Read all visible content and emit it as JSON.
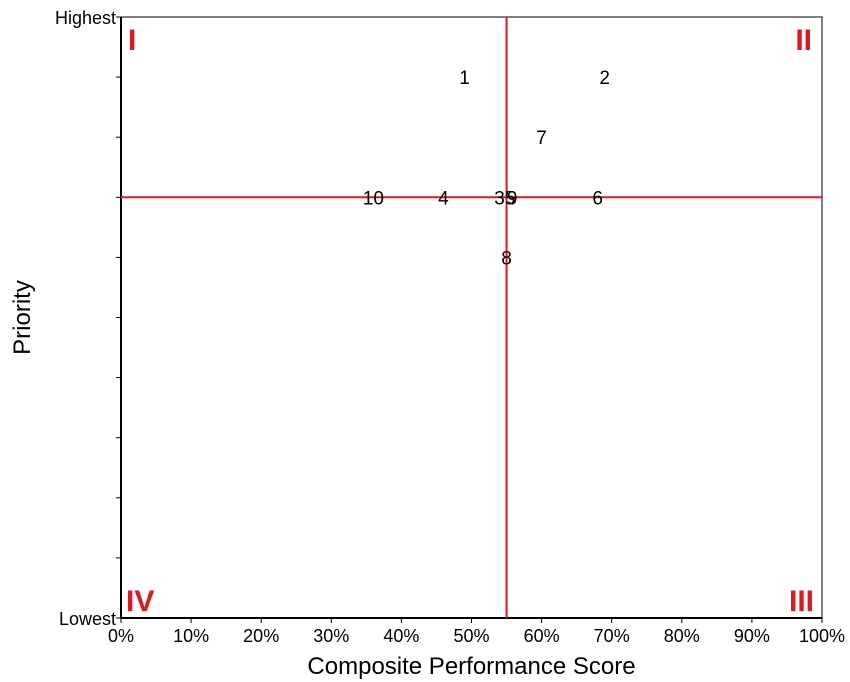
{
  "chart_data": {
    "type": "scatter",
    "xlabel": "Composite Performance Score",
    "ylabel": "Priority",
    "xlim": [
      0,
      100
    ],
    "ylim": [
      0,
      10
    ],
    "x_ticks": [
      "0%",
      "10%",
      "20%",
      "30%",
      "40%",
      "50%",
      "60%",
      "70%",
      "80%",
      "90%",
      "100%"
    ],
    "y_tick_labels": {
      "top": "Highest",
      "bottom": "Lowest"
    },
    "y_minor_ticks": 10,
    "quadrant_lines": {
      "x": 55,
      "y": 7
    },
    "quadrant_labels": {
      "top_left": "I",
      "top_right": "II",
      "bottom_right": "III",
      "bottom_left": "IV"
    },
    "colors": {
      "quadrant_line": "#e8141b",
      "quadrant_label": "#e8141b"
    },
    "points": [
      {
        "label": "1",
        "x": 49,
        "y": 9
      },
      {
        "label": "2",
        "x": 69,
        "y": 9
      },
      {
        "label": "7",
        "x": 60,
        "y": 8
      },
      {
        "label": "10",
        "x": 36,
        "y": 7
      },
      {
        "label": "4",
        "x": 46,
        "y": 7
      },
      {
        "label": "3",
        "x": 54,
        "y": 7
      },
      {
        "label": "5",
        "x": 55.5,
        "y": 7
      },
      {
        "label": "9",
        "x": 55.8,
        "y": 7
      },
      {
        "label": "6",
        "x": 68,
        "y": 7
      },
      {
        "label": "8",
        "x": 55,
        "y": 6
      }
    ]
  }
}
